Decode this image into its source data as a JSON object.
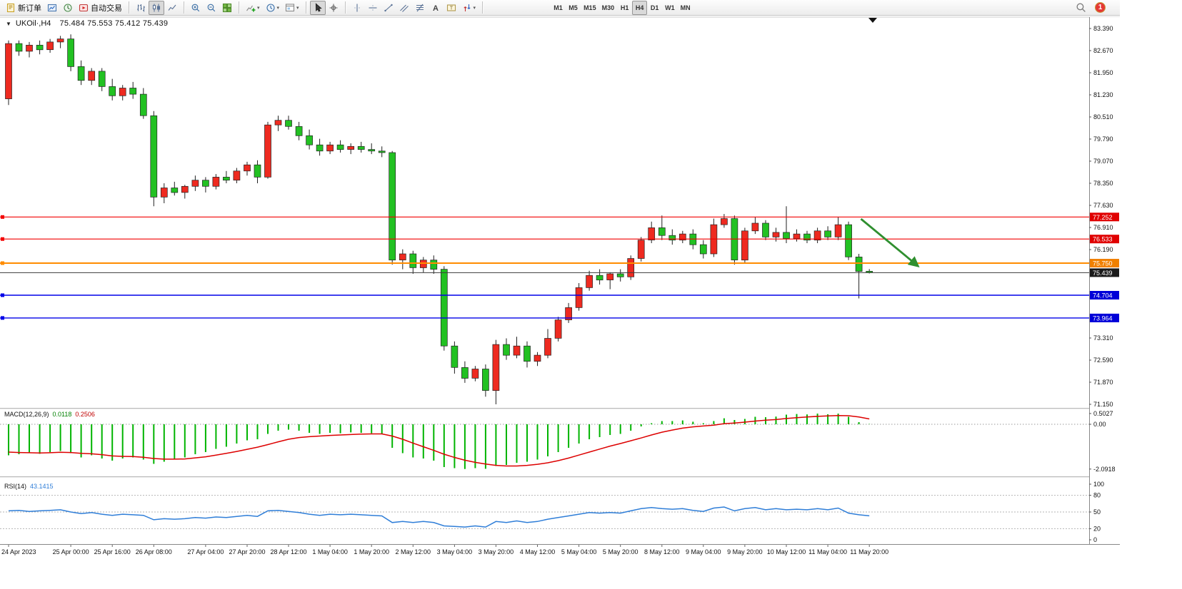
{
  "toolbar": {
    "groups": [
      {
        "name": "trade",
        "items": [
          {
            "name": "new-order",
            "icon": "new-order-icon",
            "label": "新订单"
          },
          {
            "name": "market-watch",
            "icon": "market-watch-icon"
          },
          {
            "name": "navigator",
            "icon": "navigator-icon"
          },
          {
            "name": "autotrading",
            "icon": "autotrading-icon",
            "label": "自动交易"
          }
        ]
      },
      {
        "name": "chart-type",
        "items": [
          {
            "name": "bars-chart",
            "icon": "bars-chart-icon"
          },
          {
            "name": "candles-chart",
            "icon": "candles-chart-icon",
            "active": true
          },
          {
            "name": "line-chart",
            "icon": "line-chart-icon"
          }
        ]
      },
      {
        "name": "zoom",
        "items": [
          {
            "name": "zoom-in",
            "icon": "zoom-in-icon"
          },
          {
            "name": "zoom-out",
            "icon": "zoom-out-icon"
          },
          {
            "name": "tile-windows",
            "icon": "tile-windows-icon"
          }
        ]
      },
      {
        "name": "chart-tools",
        "items": [
          {
            "name": "indicators",
            "icon": "indicators-icon",
            "dropdown": true
          },
          {
            "name": "periods",
            "icon": "periods-icon",
            "dropdown": true
          },
          {
            "name": "templates",
            "icon": "templates-icon",
            "dropdown": true
          }
        ]
      },
      {
        "name": "pointer",
        "items": [
          {
            "name": "cursor",
            "icon": "cursor-icon",
            "active": true
          },
          {
            "name": "crosshair",
            "icon": "crosshair-icon"
          }
        ]
      },
      {
        "name": "objects",
        "items": [
          {
            "name": "vertical-line",
            "icon": "vertical-line-icon"
          },
          {
            "name": "horizontal-line",
            "icon": "horizontal-line-icon"
          },
          {
            "name": "trendline",
            "icon": "trendline-icon"
          },
          {
            "name": "equidistant-channel",
            "icon": "channel-icon"
          },
          {
            "name": "fibonacci",
            "icon": "fibonacci-icon"
          },
          {
            "name": "text",
            "icon": "text-icon"
          },
          {
            "name": "text-label",
            "icon": "text-label-icon"
          },
          {
            "name": "arrows",
            "icon": "arrows-icon",
            "dropdown": true
          }
        ]
      },
      {
        "name": "timeframes",
        "tf": true,
        "items": [
          {
            "name": "tf-m1",
            "label": "M1"
          },
          {
            "name": "tf-m5",
            "label": "M5"
          },
          {
            "name": "tf-m15",
            "label": "M15"
          },
          {
            "name": "tf-m30",
            "label": "M30"
          },
          {
            "name": "tf-h1",
            "label": "H1"
          },
          {
            "name": "tf-h4",
            "label": "H4",
            "active": true
          },
          {
            "name": "tf-d1",
            "label": "D1"
          },
          {
            "name": "tf-w1",
            "label": "W1"
          },
          {
            "name": "tf-mn",
            "label": "MN"
          }
        ]
      }
    ],
    "right": {
      "search": {
        "name": "search",
        "icon": "search-icon"
      },
      "badge": "1"
    }
  },
  "chart": {
    "collapse_arrow": "▼",
    "symbol": "UKOil·,H4",
    "ohlc": "75.484 75.553 75.412 75.439"
  },
  "chart_data": {
    "type": "candlestick",
    "symbol": "UKOil",
    "period": "H4",
    "colors": {
      "up": "#ee2a20",
      "down": "#22c122",
      "outline": "#222222"
    },
    "price_axis": {
      "labels": [
        "83.390",
        "82.670",
        "81.950",
        "81.230",
        "80.510",
        "79.790",
        "79.070",
        "78.350",
        "77.630",
        "76.910",
        "76.190",
        "73.310",
        "72.590",
        "71.870",
        "71.150"
      ]
    },
    "candles": [
      [
        81.1,
        83.0,
        80.9,
        82.9
      ],
      [
        82.9,
        83.0,
        82.5,
        82.65
      ],
      [
        82.65,
        82.95,
        82.45,
        82.85
      ],
      [
        82.85,
        83.0,
        82.55,
        82.7
      ],
      [
        82.7,
        83.05,
        82.6,
        82.95
      ],
      [
        82.95,
        83.15,
        82.75,
        83.05
      ],
      [
        83.05,
        83.2,
        82.0,
        82.15
      ],
      [
        82.15,
        82.35,
        81.55,
        81.7
      ],
      [
        81.7,
        82.1,
        81.55,
        82.0
      ],
      [
        82.0,
        82.1,
        81.35,
        81.5
      ],
      [
        81.5,
        81.75,
        81.05,
        81.2
      ],
      [
        81.2,
        81.55,
        81.05,
        81.45
      ],
      [
        81.45,
        81.65,
        81.1,
        81.25
      ],
      [
        81.25,
        81.45,
        80.45,
        80.55
      ],
      [
        80.55,
        80.7,
        77.6,
        77.9
      ],
      [
        77.9,
        78.35,
        77.7,
        78.2
      ],
      [
        78.2,
        78.4,
        77.95,
        78.05
      ],
      [
        78.05,
        78.3,
        77.85,
        78.25
      ],
      [
        78.25,
        78.6,
        78.1,
        78.45
      ],
      [
        78.45,
        78.55,
        78.05,
        78.25
      ],
      [
        78.25,
        78.65,
        78.15,
        78.55
      ],
      [
        78.55,
        78.75,
        78.35,
        78.45
      ],
      [
        78.45,
        78.85,
        78.35,
        78.75
      ],
      [
        78.75,
        79.05,
        78.6,
        78.95
      ],
      [
        78.95,
        79.1,
        78.35,
        78.55
      ],
      [
        78.55,
        80.35,
        78.5,
        80.25
      ],
      [
        80.25,
        80.55,
        80.05,
        80.4
      ],
      [
        80.4,
        80.55,
        80.1,
        80.2
      ],
      [
        80.2,
        80.35,
        79.75,
        79.9
      ],
      [
        79.9,
        80.1,
        79.45,
        79.6
      ],
      [
        79.6,
        79.8,
        79.25,
        79.4
      ],
      [
        79.4,
        79.7,
        79.3,
        79.6
      ],
      [
        79.6,
        79.75,
        79.35,
        79.45
      ],
      [
        79.45,
        79.65,
        79.3,
        79.55
      ],
      [
        79.55,
        79.7,
        79.35,
        79.45
      ],
      [
        79.45,
        79.65,
        79.3,
        79.4
      ],
      [
        79.4,
        79.55,
        79.2,
        79.35
      ],
      [
        79.35,
        79.4,
        75.7,
        75.85
      ],
      [
        75.85,
        76.2,
        75.55,
        76.05
      ],
      [
        76.05,
        76.15,
        75.4,
        75.6
      ],
      [
        75.6,
        75.95,
        75.45,
        75.85
      ],
      [
        75.85,
        76.0,
        75.4,
        75.55
      ],
      [
        75.55,
        75.65,
        72.9,
        73.05
      ],
      [
        73.05,
        73.2,
        72.15,
        72.35
      ],
      [
        72.35,
        72.55,
        71.85,
        72.0
      ],
      [
        72.0,
        72.4,
        71.9,
        72.3
      ],
      [
        72.3,
        72.45,
        71.4,
        71.6
      ],
      [
        71.6,
        73.25,
        71.15,
        73.1
      ],
      [
        73.1,
        73.3,
        72.6,
        72.75
      ],
      [
        72.75,
        73.35,
        72.65,
        73.05
      ],
      [
        73.05,
        73.2,
        72.35,
        72.55
      ],
      [
        72.55,
        72.85,
        72.4,
        72.75
      ],
      [
        72.75,
        73.6,
        72.65,
        73.3
      ],
      [
        73.3,
        74.0,
        73.2,
        73.9
      ],
      [
        73.9,
        74.45,
        73.8,
        74.3
      ],
      [
        74.3,
        75.1,
        74.2,
        74.95
      ],
      [
        74.95,
        75.5,
        74.85,
        75.35
      ],
      [
        75.35,
        75.55,
        75.05,
        75.2
      ],
      [
        75.2,
        75.45,
        74.9,
        75.4
      ],
      [
        75.4,
        75.55,
        75.15,
        75.3
      ],
      [
        75.3,
        76.0,
        75.2,
        75.9
      ],
      [
        75.9,
        76.6,
        75.8,
        76.5
      ],
      [
        76.5,
        77.1,
        76.4,
        76.9
      ],
      [
        76.9,
        77.3,
        76.5,
        76.65
      ],
      [
        76.65,
        76.85,
        76.35,
        76.5
      ],
      [
        76.5,
        76.8,
        76.4,
        76.7
      ],
      [
        76.7,
        76.85,
        76.2,
        76.35
      ],
      [
        76.35,
        76.5,
        75.9,
        76.05
      ],
      [
        76.05,
        77.2,
        75.95,
        77.0
      ],
      [
        77.0,
        77.35,
        76.9,
        77.2
      ],
      [
        77.2,
        77.3,
        75.7,
        75.85
      ],
      [
        75.85,
        76.9,
        75.75,
        76.8
      ],
      [
        76.8,
        77.25,
        76.7,
        77.05
      ],
      [
        77.05,
        77.15,
        76.5,
        76.6
      ],
      [
        76.6,
        76.9,
        76.45,
        76.75
      ],
      [
        76.75,
        77.6,
        76.4,
        76.55
      ],
      [
        76.55,
        76.85,
        76.45,
        76.7
      ],
      [
        76.7,
        76.8,
        76.4,
        76.5
      ],
      [
        76.5,
        76.9,
        76.4,
        76.8
      ],
      [
        76.8,
        76.95,
        76.5,
        76.6
      ],
      [
        76.6,
        77.25,
        76.5,
        77.0
      ],
      [
        77.0,
        77.1,
        75.85,
        75.95
      ],
      [
        75.95,
        76.05,
        74.6,
        75.48
      ],
      [
        75.484,
        75.553,
        75.412,
        75.439
      ]
    ],
    "hlines": [
      {
        "name": "resistance-line-1",
        "price": 77.252,
        "label": "77.252",
        "color": "#f20000",
        "label_bg": "#e00000",
        "width": 1.2
      },
      {
        "name": "resistance-line-2",
        "price": 76.533,
        "label": "76.533",
        "color": "#f20000",
        "label_bg": "#e00000",
        "width": 1.2
      },
      {
        "name": "pivot-line-orange",
        "price": 75.75,
        "label": "75.750",
        "color": "#ff8c00",
        "label_bg": "#f08000",
        "width": 2
      },
      {
        "name": "current-price-line",
        "price": 75.439,
        "label": "75.439",
        "color": "#3c3c3c",
        "label_bg": "#1a1a1a",
        "width": 1,
        "anchor": false
      },
      {
        "name": "support-line-blue-1",
        "price": 74.704,
        "label": "74.704",
        "color": "#0000e8",
        "label_bg": "#0000d8",
        "width": 1.4
      },
      {
        "name": "support-line-blue-2",
        "price": 73.964,
        "label": "73.964",
        "color": "#0000e8",
        "label_bg": "#0000d8",
        "width": 1.4
      }
    ],
    "arrow": {
      "color": "#2f8f2f",
      "from_candle": 82.2,
      "from_price": 77.19,
      "to_candle": 87.6,
      "to_price": 75.68
    },
    "macd": {
      "title": "MACD(12,26,9)",
      "value_main": "0.0118",
      "value_signal": "0.2506",
      "histogram_color": "#00b400",
      "signal_color": "#dd0000",
      "axis_labels": [
        "0.5027",
        "0.00",
        "-2.0918"
      ],
      "main": [
        -1.45,
        -1.4,
        -1.35,
        -1.38,
        -1.3,
        -1.25,
        -1.35,
        -1.55,
        -1.45,
        -1.6,
        -1.7,
        -1.6,
        -1.55,
        -1.65,
        -1.85,
        -1.75,
        -1.65,
        -1.55,
        -1.4,
        -1.3,
        -1.15,
        -1.05,
        -0.9,
        -0.75,
        -0.7,
        -0.45,
        -0.3,
        -0.25,
        -0.3,
        -0.4,
        -0.45,
        -0.4,
        -0.42,
        -0.38,
        -0.4,
        -0.42,
        -0.45,
        -1.1,
        -1.35,
        -1.55,
        -1.6,
        -1.7,
        -2.0,
        -2.05,
        -2.09,
        -2.05,
        -2.08,
        -1.95,
        -1.9,
        -1.8,
        -1.75,
        -1.65,
        -1.5,
        -1.3,
        -1.1,
        -0.9,
        -0.7,
        -0.6,
        -0.5,
        -0.45,
        -0.3,
        -0.1,
        0.05,
        0.15,
        0.15,
        0.18,
        0.12,
        0.05,
        0.15,
        0.28,
        0.2,
        0.25,
        0.35,
        0.33,
        0.36,
        0.45,
        0.48,
        0.46,
        0.5,
        0.47,
        0.5,
        0.35,
        0.1,
        0.0118
      ],
      "signal": [
        -1.3,
        -1.32,
        -1.33,
        -1.34,
        -1.33,
        -1.31,
        -1.32,
        -1.36,
        -1.38,
        -1.42,
        -1.48,
        -1.5,
        -1.51,
        -1.54,
        -1.6,
        -1.63,
        -1.63,
        -1.62,
        -1.57,
        -1.52,
        -1.44,
        -1.36,
        -1.27,
        -1.17,
        -1.07,
        -0.95,
        -0.82,
        -0.7,
        -0.62,
        -0.58,
        -0.55,
        -0.52,
        -0.5,
        -0.48,
        -0.46,
        -0.45,
        -0.45,
        -0.55,
        -0.7,
        -0.88,
        -1.05,
        -1.22,
        -1.4,
        -1.55,
        -1.68,
        -1.78,
        -1.86,
        -1.92,
        -1.95,
        -1.95,
        -1.92,
        -1.87,
        -1.8,
        -1.7,
        -1.58,
        -1.44,
        -1.3,
        -1.16,
        -1.02,
        -0.9,
        -0.77,
        -0.64,
        -0.5,
        -0.37,
        -0.27,
        -0.18,
        -0.12,
        -0.08,
        -0.04,
        0.03,
        0.06,
        0.1,
        0.15,
        0.19,
        0.22,
        0.27,
        0.31,
        0.34,
        0.37,
        0.39,
        0.41,
        0.4,
        0.34,
        0.2506
      ]
    },
    "rsi": {
      "title": "RSI(14)",
      "value": "43.1415",
      "color": "#2f7ed8",
      "axis_labels": [
        100,
        80,
        50,
        20,
        0
      ],
      "levels": [
        80,
        50,
        20
      ],
      "values": [
        52,
        53,
        51,
        52,
        53,
        54,
        50,
        47,
        49,
        46,
        44,
        46,
        45,
        44,
        36,
        38,
        37,
        38,
        40,
        39,
        41,
        40,
        42,
        44,
        42,
        52,
        53,
        51,
        49,
        46,
        44,
        46,
        45,
        46,
        45,
        44,
        43,
        31,
        33,
        31,
        33,
        31,
        25,
        24,
        23,
        25,
        23,
        33,
        31,
        34,
        31,
        33,
        37,
        40,
        43,
        46,
        49,
        48,
        49,
        48,
        52,
        56,
        58,
        56,
        55,
        56,
        53,
        51,
        57,
        59,
        52,
        56,
        58,
        54,
        56,
        54,
        55,
        54,
        56,
        54,
        57,
        48,
        45,
        43.14
      ]
    },
    "time_axis": {
      "labels": [
        {
          "i": 0,
          "text": "24 Apr 2023"
        },
        {
          "i": 6,
          "text": "25 Apr 00:00"
        },
        {
          "i": 10,
          "text": "25 Apr 16:00"
        },
        {
          "i": 14,
          "text": "26 Apr 08:00"
        },
        {
          "i": 19,
          "text": "27 Apr 04:00"
        },
        {
          "i": 23,
          "text": "27 Apr 20:00"
        },
        {
          "i": 27,
          "text": "28 Apr 12:00"
        },
        {
          "i": 31,
          "text": "1 May 04:00"
        },
        {
          "i": 35,
          "text": "1 May 20:00"
        },
        {
          "i": 39,
          "text": "2 May 12:00"
        },
        {
          "i": 43,
          "text": "3 May 04:00"
        },
        {
          "i": 47,
          "text": "3 May 20:00"
        },
        {
          "i": 51,
          "text": "4 May 12:00"
        },
        {
          "i": 55,
          "text": "5 May 04:00"
        },
        {
          "i": 59,
          "text": "5 May 20:00"
        },
        {
          "i": 63,
          "text": "8 May 12:00"
        },
        {
          "i": 67,
          "text": "9 May 04:00"
        },
        {
          "i": 71,
          "text": "9 May 20:00"
        },
        {
          "i": 75,
          "text": "10 May 12:00"
        },
        {
          "i": 79,
          "text": "11 May 04:00"
        },
        {
          "i": 83,
          "text": "11 May 20:00"
        }
      ]
    }
  }
}
